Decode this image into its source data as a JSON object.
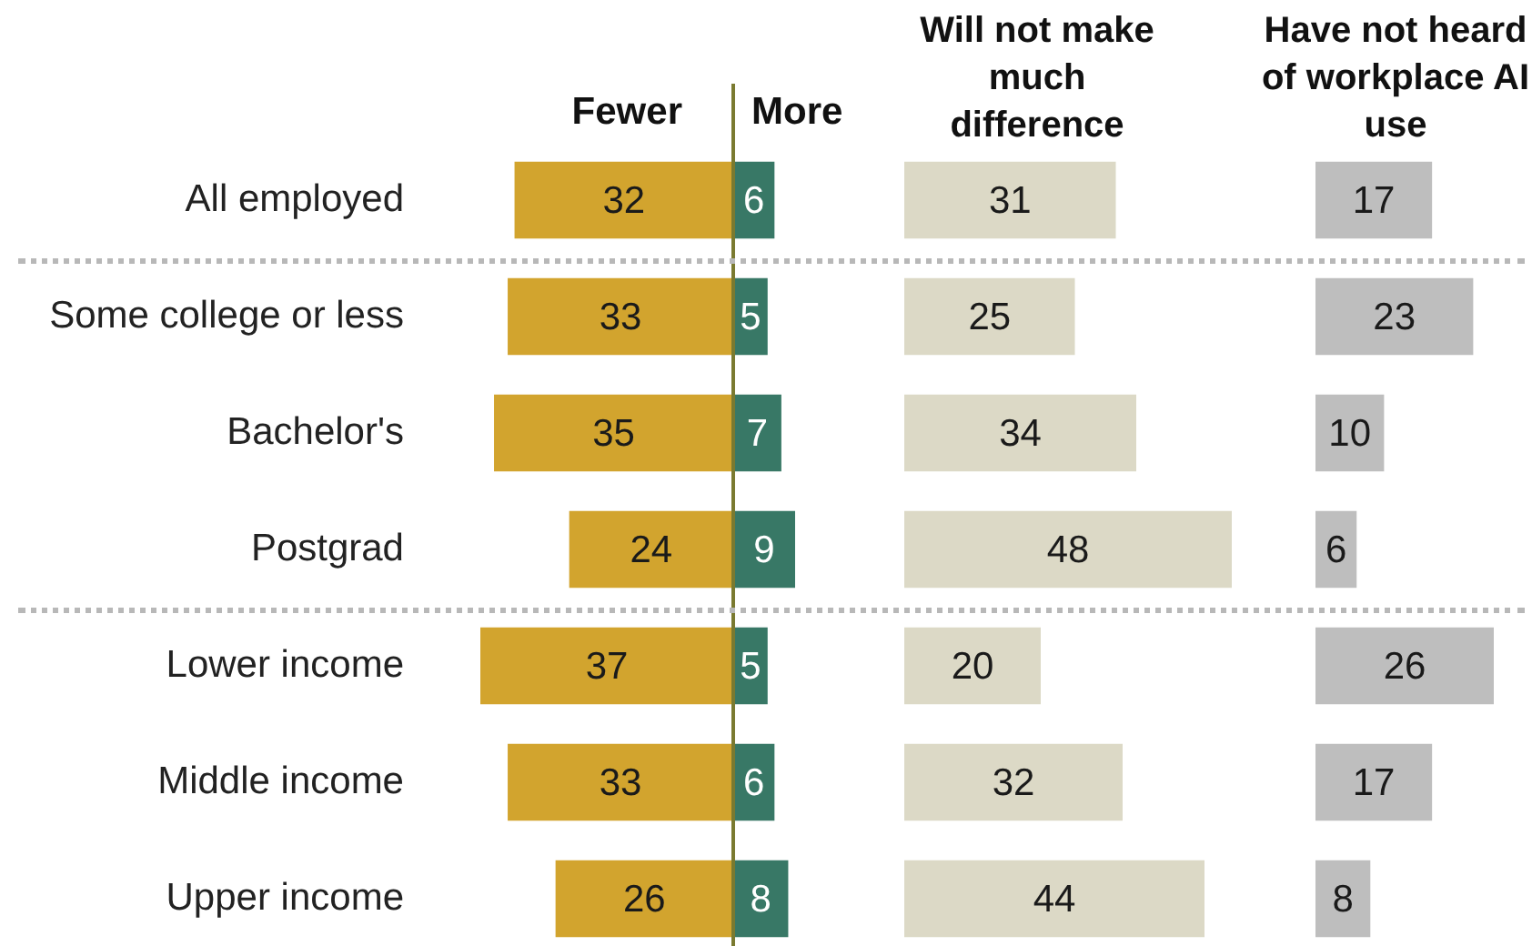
{
  "chart_data": [
    {
      "type": "bar",
      "orientation": "horizontal",
      "categories": [
        "All employed",
        "Some college or less",
        "Bachelor's",
        "Postgrad",
        "Lower income",
        "Middle income",
        "Upper income"
      ],
      "series": [
        {
          "name": "Fewer",
          "color": "#d2a42e",
          "values": [
            32,
            33,
            35,
            24,
            37,
            33,
            26
          ]
        }
      ],
      "xlim": [
        37,
        0
      ],
      "data_labels": true,
      "tick_labels": "y",
      "legend": false
    },
    {
      "type": "bar",
      "orientation": "horizontal",
      "categories": [
        null,
        null,
        null,
        null,
        null,
        null,
        null
      ],
      "series": [
        {
          "name": "More",
          "color": "#387866",
          "values": [
            6,
            5,
            7,
            9,
            5,
            6,
            8
          ]
        }
      ],
      "xlim": [
        0,
        9
      ],
      "ref_lines": [
        {
          "axis": "x",
          "value": 0,
          "color": "#7a7a30"
        }
      ],
      "data_labels": true,
      "tick_labels": false,
      "legend": false
    },
    {
      "type": "bar",
      "orientation": "horizontal",
      "title": "Will not make much difference",
      "categories": [
        null,
        null,
        null,
        null,
        null,
        null,
        null
      ],
      "series": [
        {
          "color": "#dcd9c6",
          "values": [
            31,
            25,
            34,
            48,
            20,
            32,
            44
          ]
        }
      ],
      "xlim": [
        0,
        48
      ],
      "data_labels": true,
      "tick_labels": false,
      "legend": false
    },
    {
      "type": "bar",
      "orientation": "horizontal",
      "title": "Have not heard of workplace AI use",
      "categories": [
        null,
        null,
        null,
        null,
        null,
        null,
        null
      ],
      "series": [
        {
          "color": "#bebebe",
          "values": [
            17,
            23,
            10,
            6,
            26,
            17,
            8
          ]
        }
      ],
      "xlim": [
        0,
        26
      ],
      "data_labels": true,
      "tick_labels": false,
      "legend": false
    }
  ]
}
